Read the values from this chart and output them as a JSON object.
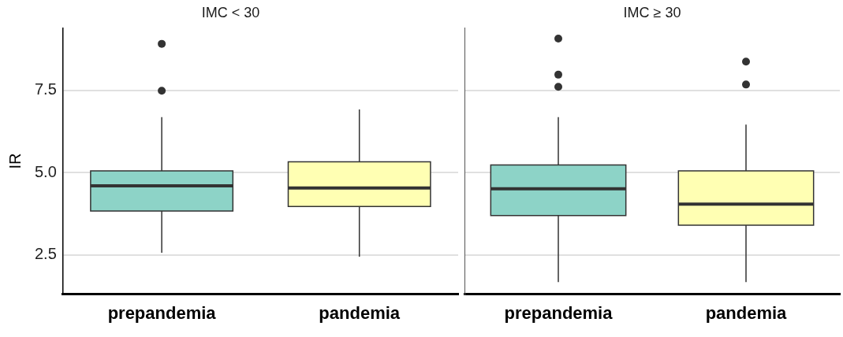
{
  "chart_data": [
    {
      "type": "box",
      "title": "IMC < 30",
      "ylabel": "IR",
      "categories": [
        "prepandemia",
        "pandemia"
      ],
      "colors": [
        "#8dd3c7",
        "#ffffb3"
      ],
      "boxes": [
        {
          "low": 2.56,
          "q1": 3.83,
          "median": 4.6,
          "q3": 5.05,
          "high": 6.69,
          "outliers": [
            8.92,
            7.49
          ]
        },
        {
          "low": 2.44,
          "q1": 3.97,
          "median": 4.53,
          "q3": 5.33,
          "high": 6.92
        }
      ],
      "ylim": [
        1.3,
        9.4
      ],
      "yticks": [
        2.5,
        {
          "value": 5,
          "label": "5.0"
        },
        7.5
      ],
      "grid": "y",
      "legend": false
    },
    {
      "type": "box",
      "title": "IMC ≥ 30",
      "categories": [
        "prepandemia",
        "pandemia"
      ],
      "colors": [
        "#8dd3c7",
        "#ffffb3"
      ],
      "boxes": [
        {
          "low": 1.67,
          "q1": 3.69,
          "median": 4.51,
          "q3": 5.23,
          "high": 6.69,
          "outliers": [
            9.08,
            7.98,
            7.61
          ]
        },
        {
          "low": 1.67,
          "q1": 3.4,
          "median": 4.04,
          "q3": 5.05,
          "high": 6.46,
          "outliers": [
            8.38,
            7.68
          ]
        }
      ],
      "ylim": [
        1.3,
        9.4
      ],
      "yticks": [
        2.5,
        5,
        7.5
      ],
      "grid": "y",
      "tick_labels": "x",
      "legend": false
    }
  ]
}
